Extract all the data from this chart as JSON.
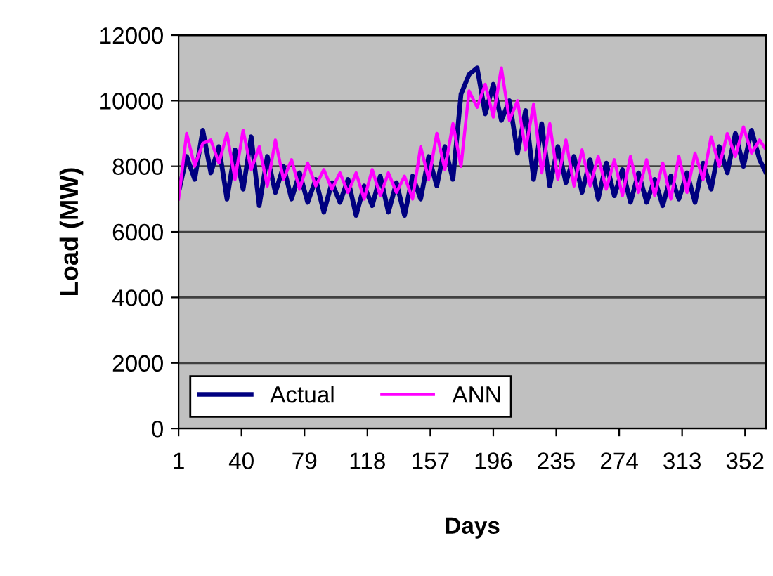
{
  "chart_data": {
    "type": "line",
    "xlabel": "Days",
    "ylabel": "Load (MW)",
    "x": [
      1,
      6,
      11,
      16,
      21,
      26,
      31,
      36,
      41,
      46,
      51,
      56,
      61,
      66,
      71,
      76,
      81,
      86,
      91,
      96,
      101,
      106,
      111,
      116,
      121,
      126,
      131,
      136,
      141,
      146,
      151,
      156,
      161,
      166,
      171,
      176,
      181,
      186,
      191,
      196,
      201,
      206,
      211,
      216,
      221,
      226,
      231,
      236,
      241,
      246,
      251,
      256,
      261,
      266,
      271,
      276,
      281,
      286,
      291,
      296,
      301,
      306,
      311,
      316,
      321,
      326,
      331,
      336,
      341,
      346,
      351,
      356,
      361,
      365
    ],
    "series": [
      {
        "name": "Actual",
        "color": "#000080",
        "values": [
          7200,
          8300,
          7600,
          9100,
          7800,
          8600,
          7000,
          8500,
          7300,
          8900,
          6800,
          8300,
          7200,
          8000,
          7000,
          7800,
          6900,
          7600,
          6600,
          7500,
          6900,
          7600,
          6500,
          7400,
          6800,
          7700,
          6600,
          7500,
          6500,
          7700,
          7000,
          8300,
          7400,
          8600,
          7600,
          10200,
          10800,
          11000,
          9600,
          10500,
          9400,
          10000,
          8400,
          9700,
          7600,
          9300,
          7400,
          8600,
          7500,
          8300,
          7200,
          8200,
          7000,
          8100,
          7100,
          7900,
          6900,
          7800,
          6900,
          7600,
          6800,
          7700,
          7000,
          7800,
          6900,
          8100,
          7300,
          8600,
          7800,
          9000,
          8000,
          9100,
          8200,
          7800
        ]
      },
      {
        "name": "ANN",
        "color": "#ff00ff",
        "values": [
          7000,
          9000,
          8000,
          8700,
          8800,
          8100,
          9000,
          7600,
          9100,
          7900,
          8600,
          7400,
          8800,
          7600,
          8200,
          7300,
          8100,
          7400,
          7900,
          7300,
          7800,
          7200,
          7800,
          7000,
          7900,
          7100,
          7800,
          7200,
          7700,
          7000,
          8600,
          7600,
          9000,
          7900,
          9300,
          8000,
          10300,
          9800,
          10500,
          9500,
          11000,
          9400,
          10000,
          8500,
          9900,
          7800,
          9300,
          7600,
          8800,
          7400,
          8500,
          7400,
          8300,
          7300,
          8200,
          7100,
          8300,
          7200,
          8200,
          7100,
          8100,
          7000,
          8300,
          7200,
          8400,
          7600,
          8900,
          8000,
          9000,
          8300,
          9200,
          8400,
          8800,
          8500
        ]
      }
    ],
    "xlim": [
      1,
      365
    ],
    "xticks": [
      1,
      40,
      79,
      118,
      157,
      196,
      235,
      274,
      313,
      352
    ],
    "ylim": [
      0,
      12000
    ],
    "yticks": [
      0,
      2000,
      4000,
      6000,
      8000,
      10000,
      12000
    ],
    "grid": "y",
    "legend": "bottom left",
    "line_style": "solid",
    "marker": "none"
  }
}
